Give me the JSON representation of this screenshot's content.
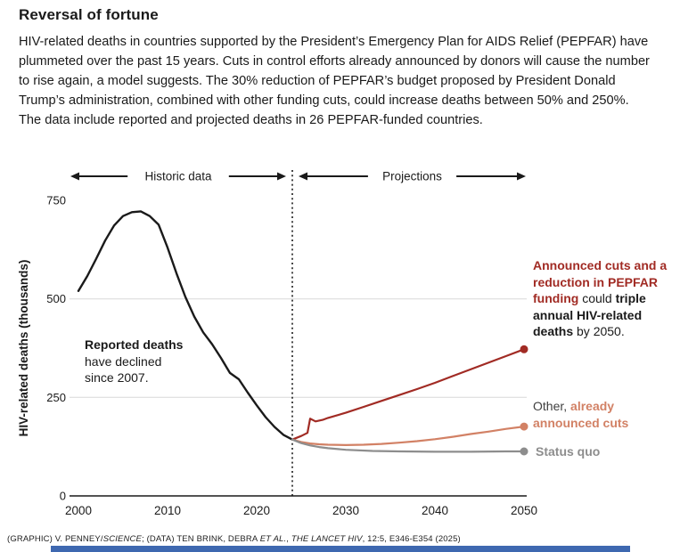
{
  "header": {
    "title": "Reversal of fortune",
    "description": "HIV-related deaths in countries supported by the President’s Emergency Plan for AIDS Relief (PEPFAR) have plummeted over the past 15 years. Cuts in control efforts already announced by donors will cause the number to rise again, a model suggests. The 30% reduction of PEPFAR’s budget proposed by President Donald Trump’s administration, combined with other funding cuts, could increase deaths between 50% and 250%. The data include reported and projected deaths in 26 PEPFAR-funded countries."
  },
  "chart_data": {
    "type": "line",
    "title": "Reversal of fortune",
    "ylabel": "HIV-related deaths (thousands)",
    "xlabel": "",
    "xlim": [
      2000,
      2050
    ],
    "ylim": [
      0,
      750
    ],
    "xticks": [
      2000,
      2010,
      2020,
      2030,
      2040,
      2050
    ],
    "yticks": [
      0,
      250,
      500,
      750
    ],
    "gridlines": [
      250,
      500
    ],
    "divider_year": 2024,
    "region_labels": [
      "Historic data",
      "Projections"
    ],
    "series": [
      {
        "name": "Reported deaths (historic)",
        "color": "#1a1a1a",
        "end_dot": false,
        "x": [
          2000,
          2001,
          2002,
          2003,
          2004,
          2005,
          2006,
          2007,
          2008,
          2009,
          2010,
          2011,
          2012,
          2013,
          2014,
          2015,
          2016,
          2017,
          2018,
          2019,
          2020,
          2021,
          2022,
          2023,
          2024
        ],
        "y": [
          520,
          558,
          602,
          648,
          686,
          710,
          720,
          722,
          710,
          688,
          630,
          565,
          505,
          455,
          415,
          385,
          350,
          312,
          296,
          262,
          230,
          200,
          175,
          155,
          143
        ]
      },
      {
        "name": "Announced cuts and a reduction in PEPFAR funding",
        "color": "#a12b24",
        "end_dot": true,
        "x": [
          2024,
          2025,
          2025.7,
          2026,
          2026.6,
          2027.4,
          2028,
          2030,
          2032,
          2034,
          2036,
          2038,
          2040,
          2042,
          2044,
          2046,
          2048,
          2050
        ],
        "y": [
          143,
          152,
          160,
          196,
          189,
          193,
          198,
          211,
          226,
          241,
          256,
          271,
          287,
          304,
          321,
          338,
          355,
          372
        ]
      },
      {
        "name": "Other, already announced cuts",
        "color": "#d28165",
        "end_dot": true,
        "x": [
          2024,
          2025,
          2026,
          2027,
          2028,
          2030,
          2032,
          2034,
          2036,
          2038,
          2040,
          2042,
          2044,
          2046,
          2048,
          2050
        ],
        "y": [
          143,
          137,
          133,
          131,
          130,
          129,
          130,
          132,
          135,
          139,
          144,
          150,
          157,
          163,
          170,
          176
        ]
      },
      {
        "name": "Status quo",
        "color": "#8d8d8d",
        "end_dot": true,
        "x": [
          2024,
          2025,
          2026,
          2027,
          2028,
          2030,
          2033,
          2036,
          2040,
          2044,
          2048,
          2050
        ],
        "y": [
          143,
          134,
          128,
          124,
          121,
          117,
          114,
          113,
          112,
          112,
          113,
          113
        ]
      }
    ]
  },
  "annotations": {
    "reported": {
      "bold": "Reported deaths",
      "rest": " have declined since 2007."
    },
    "cuts": {
      "red_bold": "Announced cuts and a reduction in PEPFAR funding",
      "mid": " could ",
      "black_bold": "triple annual HIV-related deaths",
      "end": " by 2050."
    },
    "other": {
      "prefix": "Other, ",
      "bold": "already announced cuts"
    },
    "status_quo": "Status quo"
  },
  "credit": {
    "p1": "(GRAPHIC) V. PENNEY/",
    "i1": "SCIENCE",
    "p2": "; (DATA) TEN BRINK, DEBRA ",
    "i2": "ET AL.",
    "p3": ", ",
    "i3": "THE LANCET HIV",
    "p4": ", 12:5, E346-E354 (2025)"
  },
  "colors": {
    "text": "#1a1a1a",
    "grid": "#d8d8d8",
    "footer_bar": "#3e68b0"
  }
}
